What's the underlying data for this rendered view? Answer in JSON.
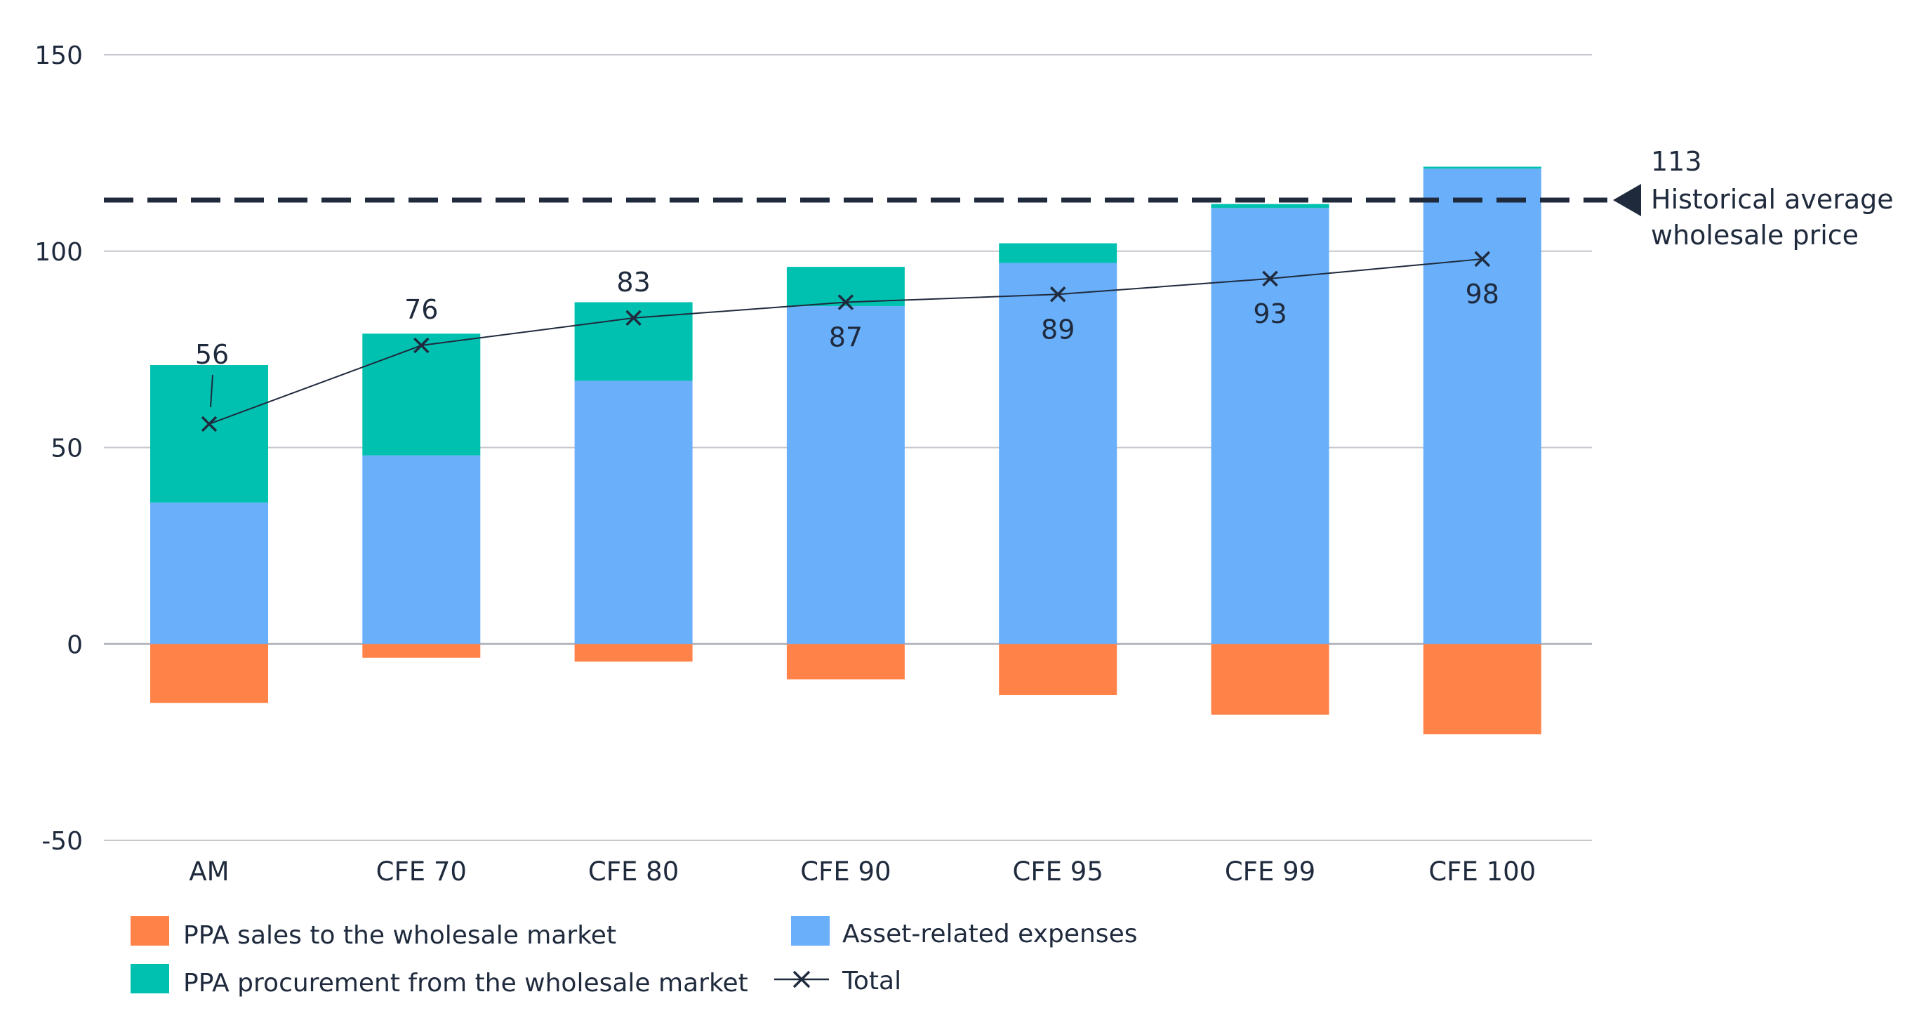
{
  "chart_data": {
    "type": "bar",
    "stacked": true,
    "title": "",
    "xlabel": "",
    "ylabel": "",
    "ylim": [
      -50,
      150
    ],
    "yticks": [
      -50,
      0,
      50,
      100,
      150
    ],
    "ytick_labels": [
      "-50",
      "0",
      "50",
      "100",
      "150"
    ],
    "grid": true,
    "categories": [
      "AM",
      "CFE 70",
      "CFE 80",
      "CFE 90",
      "CFE 95",
      "CFE 99",
      "CFE 100"
    ],
    "series": [
      {
        "key": "asset",
        "name": "Asset-related expenses",
        "color": "#69affa",
        "values": [
          36,
          48,
          67,
          86,
          97,
          111,
          121
        ]
      },
      {
        "key": "procure",
        "name": "PPA procurement from the wholesale market",
        "color": "#00c1b0",
        "values": [
          35,
          31,
          20,
          10,
          5,
          1,
          0.5
        ]
      },
      {
        "key": "sales",
        "name": "PPA sales to the wholesale market",
        "color": "#ff8349",
        "values": [
          -15,
          -3.5,
          -4.5,
          -9,
          -13,
          -18,
          -23
        ]
      }
    ],
    "line": {
      "name": "Total",
      "color": "#1f2a3d",
      "values": [
        56,
        76,
        83,
        87,
        89,
        93,
        98
      ],
      "labels": [
        "56",
        "76",
        "83",
        "87",
        "89",
        "93",
        "98"
      ]
    },
    "reference_line": {
      "value": 113,
      "value_label": "113",
      "label_line1": "Historical average",
      "label_line2": "wholesale price",
      "color": "#1f2a3d"
    },
    "legend": {
      "placement": "bottom-left",
      "entries": [
        "PPA sales to the wholesale market",
        "Asset-related expenses",
        "PPA procurement from the wholesale market",
        "Total"
      ]
    }
  }
}
